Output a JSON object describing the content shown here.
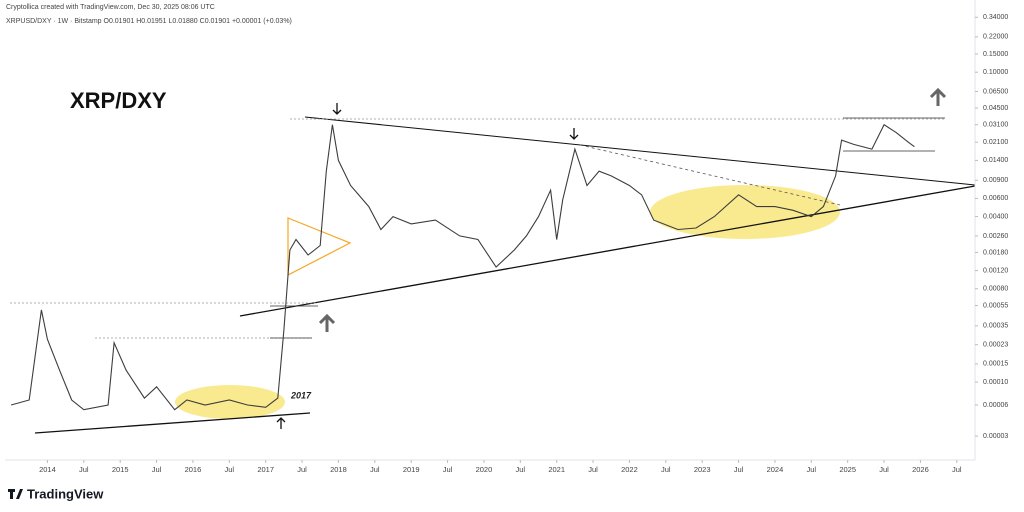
{
  "header": {
    "credit": "Cryptollica created with TradingView.com, Dec 30, 2025 08:06 UTC",
    "symbol": "XRPUSD/DXY · 1W · Bitstamp  O0.01901 H0.01951 L0.01880 C0.01901 +0.00001 (+0.03%)"
  },
  "logo": "TradingView",
  "chart_data": {
    "type": "line",
    "title": "XRP/DXY",
    "annotation": "2017",
    "log_scale": true,
    "grid": false,
    "color": "#3d3d3d",
    "xlim": [
      "2013-06",
      "2026-10"
    ],
    "xticks": [
      {
        "value": "2014-01",
        "label": "2014"
      },
      {
        "value": "2014-07",
        "label": "Jul"
      },
      {
        "value": "2015-01",
        "label": "2015"
      },
      {
        "value": "2015-07",
        "label": "Jul"
      },
      {
        "value": "2016-01",
        "label": "2016"
      },
      {
        "value": "2016-07",
        "label": "Jul"
      },
      {
        "value": "2017-01",
        "label": "2017"
      },
      {
        "value": "2017-07",
        "label": "Jul"
      },
      {
        "value": "2018-01",
        "label": "2018"
      },
      {
        "value": "2018-07",
        "label": "Jul"
      },
      {
        "value": "2019-01",
        "label": "2019"
      },
      {
        "value": "2019-07",
        "label": "Jul"
      },
      {
        "value": "2020-01",
        "label": "2020"
      },
      {
        "value": "2020-07",
        "label": "Jul"
      },
      {
        "value": "2021-01",
        "label": "2021"
      },
      {
        "value": "2021-07",
        "label": "Jul"
      },
      {
        "value": "2022-01",
        "label": "2022"
      },
      {
        "value": "2022-07",
        "label": "Jul"
      },
      {
        "value": "2023-01",
        "label": "2023"
      },
      {
        "value": "2023-07",
        "label": "Jul"
      },
      {
        "value": "2024-01",
        "label": "2024"
      },
      {
        "value": "2024-07",
        "label": "Jul"
      },
      {
        "value": "2025-01",
        "label": "2025"
      },
      {
        "value": "2025-07",
        "label": "Jul"
      },
      {
        "value": "2026-01",
        "label": "2026"
      },
      {
        "value": "2026-07",
        "label": "Jul"
      }
    ],
    "ylim": [
      1.76e-05,
      0.5
    ],
    "yticks": [
      {
        "value": 0.34,
        "label": "0.34000"
      },
      {
        "value": 0.22,
        "label": "0.22000"
      },
      {
        "value": 0.15,
        "label": "0.15000"
      },
      {
        "value": 0.1,
        "label": "0.10000"
      },
      {
        "value": 0.065,
        "label": "0.06500"
      },
      {
        "value": 0.045,
        "label": "0.04500"
      },
      {
        "value": 0.031,
        "label": "0.03100"
      },
      {
        "value": 0.021,
        "label": "0.02100"
      },
      {
        "value": 0.014,
        "label": "0.01400"
      },
      {
        "value": 0.009,
        "label": "0.00900"
      },
      {
        "value": 0.006,
        "label": "0.00600"
      },
      {
        "value": 0.004,
        "label": "0.00400"
      },
      {
        "value": 0.0026,
        "label": "0.00260"
      },
      {
        "value": 0.0018,
        "label": "0.00180"
      },
      {
        "value": 0.0012,
        "label": "0.00120"
      },
      {
        "value": 0.0008,
        "label": "0.00080"
      },
      {
        "value": 0.00055,
        "label": "0.00055"
      },
      {
        "value": 0.00035,
        "label": "0.00035"
      },
      {
        "value": 0.00023,
        "label": "0.00023"
      },
      {
        "value": 0.00015,
        "label": "0.00015"
      },
      {
        "value": 0.0001,
        "label": "0.00010"
      },
      {
        "value": 6e-05,
        "label": "0.00006"
      },
      {
        "value": 3e-05,
        "label": "0.00003"
      }
    ],
    "x": [
      "2013-07",
      "2013-10",
      "2013-12",
      "2014-01",
      "2014-03",
      "2014-05",
      "2014-07",
      "2014-11",
      "2014-12",
      "2015-02",
      "2015-05",
      "2015-07",
      "2015-10",
      "2015-12",
      "2016-03",
      "2016-07",
      "2016-10",
      "2017-01",
      "2017-03",
      "2017-04",
      "2017-05",
      "2017-06",
      "2017-08",
      "2017-10",
      "2017-11",
      "2017-12",
      "2018-01",
      "2018-03",
      "2018-06",
      "2018-08",
      "2018-10",
      "2019-01",
      "2019-05",
      "2019-09",
      "2019-12",
      "2020-03",
      "2020-06",
      "2020-08",
      "2020-10",
      "2020-12",
      "2021-01",
      "2021-02",
      "2021-04",
      "2021-06",
      "2021-08",
      "2021-10",
      "2022-01",
      "2022-03",
      "2022-05",
      "2022-09",
      "2022-12",
      "2023-03",
      "2023-07",
      "2023-10",
      "2024-01",
      "2024-04",
      "2024-07",
      "2024-09",
      "2024-11",
      "2024-12",
      "2025-02",
      "2025-05",
      "2025-07",
      "2025-09",
      "2025-11",
      "2025-12"
    ],
    "values": [
      6e-05,
      6.7e-05,
      0.0005,
      0.00026,
      0.00013,
      6.7e-05,
      5.4e-05,
      6e-05,
      0.00024,
      0.00013,
      7e-05,
      9e-05,
      5.4e-05,
      6.7e-05,
      6e-05,
      6.7e-05,
      6e-05,
      5.7e-05,
      7e-05,
      0.00032,
      0.0019,
      0.0024,
      0.0017,
      0.0021,
      0.011,
      0.031,
      0.014,
      0.008,
      0.005,
      0.003,
      0.004,
      0.0034,
      0.0037,
      0.0026,
      0.0024,
      0.0013,
      0.0019,
      0.0026,
      0.004,
      0.0072,
      0.0024,
      0.0058,
      0.018,
      0.008,
      0.011,
      0.0099,
      0.008,
      0.0065,
      0.0037,
      0.003,
      0.0031,
      0.004,
      0.0065,
      0.005,
      0.005,
      0.0046,
      0.004,
      0.005,
      0.0099,
      0.022,
      0.02,
      0.018,
      0.031,
      0.026,
      0.021,
      0.019
    ]
  }
}
